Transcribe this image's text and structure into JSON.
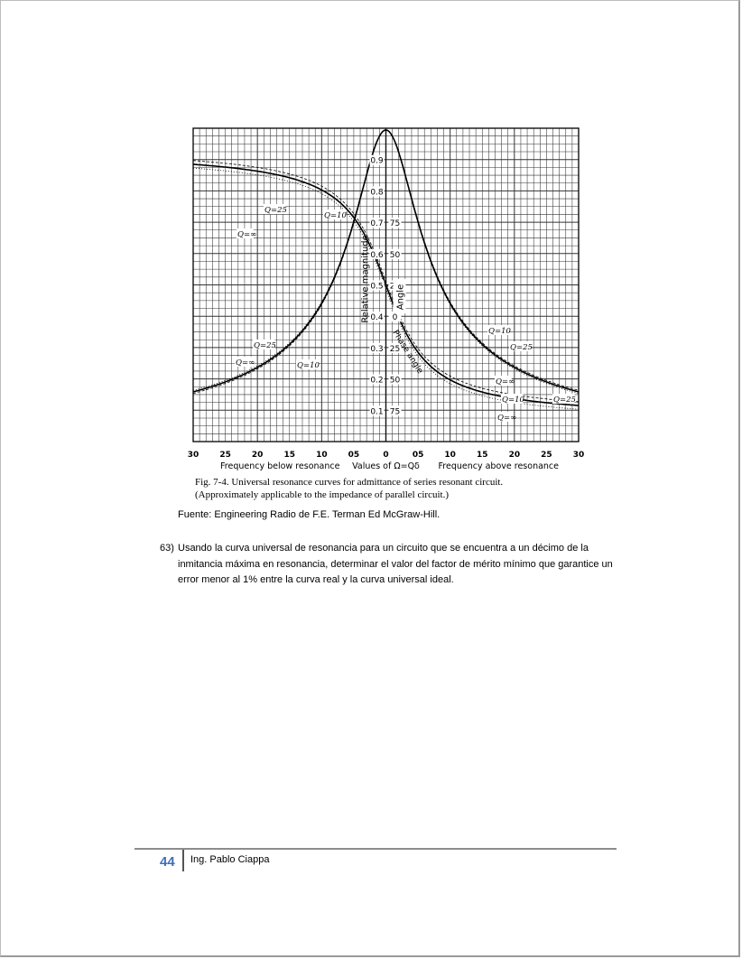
{
  "figure": {
    "y_tick_labels": [
      "0.9",
      "0.8",
      "0.7",
      "0.6",
      "0.5",
      "0.4",
      "0.3",
      "0.2",
      "0.1"
    ],
    "angle_tick_labels": [
      "75",
      "50",
      "25",
      "0",
      "25",
      "50",
      "75"
    ],
    "x_tick_labels": [
      "30",
      "25",
      "20",
      "15",
      "10",
      "05",
      "0",
      "05",
      "10",
      "15",
      "20",
      "25",
      "30"
    ],
    "ylabel_magnitude": "Relative magnitude",
    "ylabel_angle": "Angle",
    "curve_label_phase": "Phase angle",
    "q_labels": [
      "Q=25",
      "Q=10",
      "Q=∞",
      "Q=10",
      "Q=25",
      "Q=∞",
      "Q=10",
      "Q=25",
      "Q=∞",
      "Q=10",
      "Q=25",
      "Q=∞"
    ],
    "xlabel_left": "Frequency below resonance",
    "xlabel_center": "Values of Ω=Qδ",
    "xlabel_right": "Frequency above resonance",
    "caption_line1": "Fig. 7-4. Universal resonance curves for admittance of series resonant circuit.",
    "caption_line2": "(Approximately applicable to the impedance of parallel circuit.)"
  },
  "source": "Fuente: Engineering Radio de F.E. Terman Ed McGraw-Hill.",
  "question": {
    "number": "63)",
    "text": "Usando la curva universal de resonancia para un circuito que se encuentra a un décimo de la inmitancia máxima en resonancia, determinar el valor del factor de mérito mínimo que garantice un error menor al 1% entre la curva real y la curva universal ideal."
  },
  "footer": {
    "page_number": "44",
    "author": "Ing. Pablo Ciappa"
  }
}
